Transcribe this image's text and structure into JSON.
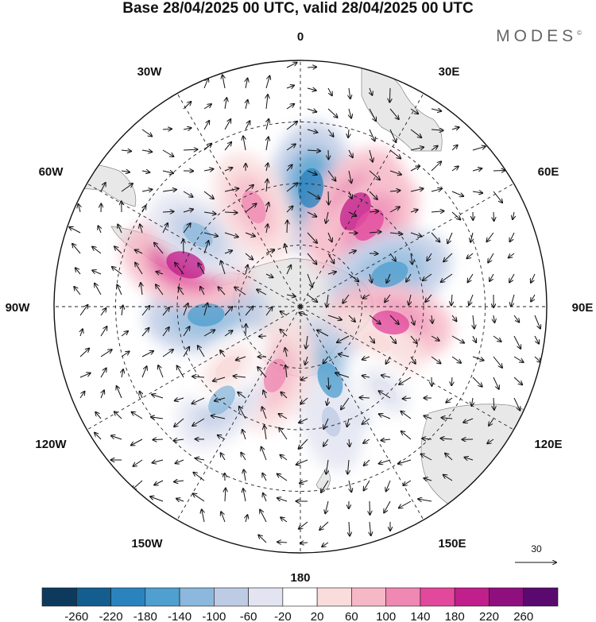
{
  "title": "Base 28/04/2025 00 UTC, valid 28/04/2025 00 UTC",
  "brand": "MODES",
  "brand_mark": "©",
  "longitude_labels": {
    "top": "0",
    "top_left": "30W",
    "top_right": "30E",
    "upper_left": "60W",
    "upper_right": "60E",
    "left": "90W",
    "right": "90E",
    "lower_left": "120W",
    "lower_right": "120E",
    "bottom_left": "150W",
    "bottom_right": "150E",
    "bottom": "180"
  },
  "vector_scale": {
    "label": "30"
  },
  "colorbar": {
    "labels": [
      "-260",
      "-220",
      "-180",
      "-140",
      "-100",
      "-60",
      "-20",
      "20",
      "60",
      "100",
      "140",
      "180",
      "220",
      "260"
    ],
    "colors": [
      "#0d3a5c",
      "#135e8f",
      "#2a83bd",
      "#4f9fcf",
      "#8bb8dc",
      "#bdcbe5",
      "#e2e4f1",
      "#ffffff",
      "#f9dcdc",
      "#f6b8c6",
      "#ef88b2",
      "#e2489c",
      "#c11f8c",
      "#8f0f7e",
      "#5a0a6e"
    ]
  },
  "map": {
    "projection": "south-polar-stereographic",
    "land_color": "#e8e8e8",
    "anomaly_cells": [
      {
        "lon": 5,
        "r": 0.78,
        "value": -190
      },
      {
        "lon": 30,
        "r": 0.72,
        "value": 210
      },
      {
        "lon": 40,
        "r": 0.7,
        "value": 150
      },
      {
        "lon": 70,
        "r": 0.62,
        "value": -170
      },
      {
        "lon": 100,
        "r": 0.6,
        "value": 160
      },
      {
        "lon": 115,
        "r": 0.55,
        "value": 60
      },
      {
        "lon": 158,
        "r": 0.52,
        "value": -150
      },
      {
        "lon": 165,
        "r": 0.78,
        "value": -60
      },
      {
        "lon": -160,
        "r": 0.48,
        "value": 120
      },
      {
        "lon": -140,
        "r": 0.8,
        "value": -110
      },
      {
        "lon": -95,
        "r": 0.62,
        "value": -150
      },
      {
        "lon": -70,
        "r": 0.8,
        "value": 190
      },
      {
        "lon": -55,
        "r": 0.82,
        "value": -100
      },
      {
        "lon": -25,
        "r": 0.72,
        "value": 120
      },
      {
        "lon": -130,
        "r": 0.62,
        "value": 40
      },
      {
        "lon": 135,
        "r": 0.78,
        "value": -40
      }
    ]
  }
}
